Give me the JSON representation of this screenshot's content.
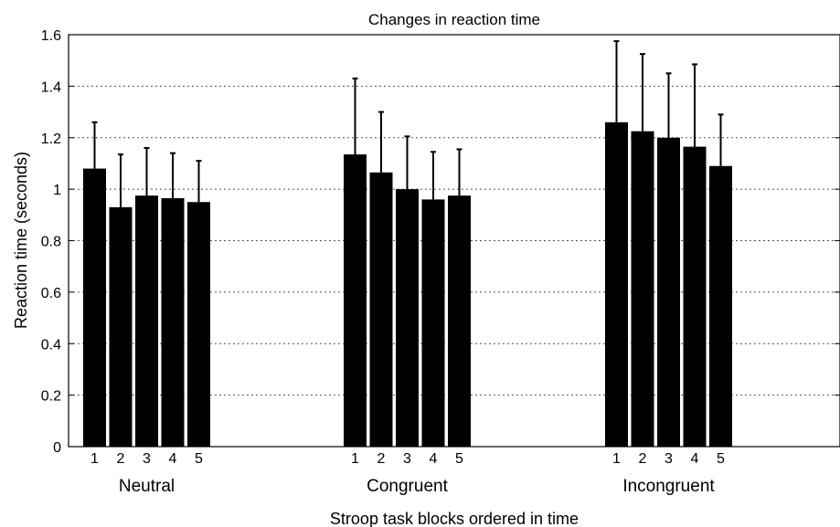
{
  "chart_data": {
    "type": "bar",
    "title": "Changes in reaction time",
    "xlabel": "Stroop task blocks ordered in time",
    "ylabel": "Reaction time (seconds)",
    "ylim": [
      0,
      1.6
    ],
    "yticks": [
      0,
      0.2,
      0.4,
      0.6,
      0.8,
      1,
      1.2,
      1.4,
      1.6
    ],
    "ytick_labels": [
      "0",
      "0.2",
      "0.4",
      "0.6",
      "0.8",
      "1",
      "1.2",
      "1.4",
      "1.6"
    ],
    "grid": "horizontal dotted",
    "bar_color": "#000000",
    "groups": [
      {
        "label": "Neutral",
        "blocks": [
          "1",
          "2",
          "3",
          "4",
          "5"
        ],
        "values": [
          1.08,
          0.93,
          0.975,
          0.965,
          0.95
        ],
        "error_upper": [
          1.26,
          1.135,
          1.16,
          1.14,
          1.11
        ]
      },
      {
        "label": "Congruent",
        "blocks": [
          "1",
          "2",
          "3",
          "4",
          "5"
        ],
        "values": [
          1.135,
          1.065,
          1.0,
          0.96,
          0.975
        ],
        "error_upper": [
          1.43,
          1.3,
          1.205,
          1.145,
          1.155
        ]
      },
      {
        "label": "Incongruent",
        "blocks": [
          "1",
          "2",
          "3",
          "4",
          "5"
        ],
        "values": [
          1.26,
          1.225,
          1.2,
          1.165,
          1.09
        ],
        "error_upper": [
          1.575,
          1.525,
          1.45,
          1.485,
          1.29
        ]
      }
    ]
  }
}
